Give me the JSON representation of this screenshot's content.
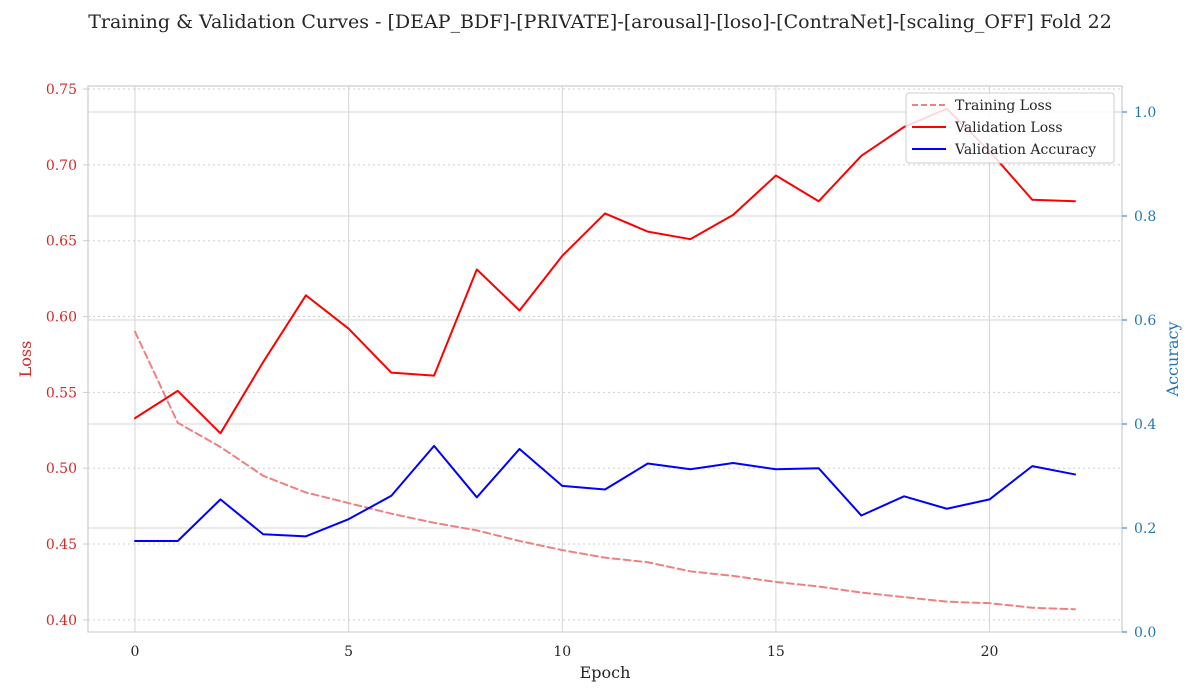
{
  "chart_data": {
    "type": "line",
    "title": "Training & Validation Curves - [DEAP_BDF]-[PRIVATE]-[arousal]-[loso]-[ContraNet]-[scaling_OFF] Fold 22",
    "xlabel": "Epoch",
    "ylabel_left": "Loss",
    "ylabel_right": "Accuracy",
    "xlim": [
      -1.1,
      23.1
    ],
    "ylim_left": [
      0.392,
      0.752
    ],
    "ylim_right": [
      0.0,
      1.05
    ],
    "xticks": [
      0,
      5,
      10,
      15,
      20
    ],
    "yticks_left": [
      0.4,
      0.45,
      0.5,
      0.55,
      0.6,
      0.65,
      0.7,
      0.75
    ],
    "yticks_right": [
      0.0,
      0.2,
      0.4,
      0.6,
      0.8,
      1.0
    ],
    "grid": true,
    "legend_position": "top-right",
    "x": [
      0,
      1,
      2,
      3,
      4,
      5,
      6,
      7,
      8,
      9,
      10,
      11,
      12,
      13,
      14,
      15,
      16,
      17,
      18,
      19,
      20,
      21,
      22
    ],
    "series": [
      {
        "name": "Training Loss",
        "axis": "left",
        "color": "#f08080",
        "style": "dashed",
        "values": [
          0.59,
          0.53,
          0.514,
          0.495,
          0.484,
          0.477,
          0.47,
          0.464,
          0.459,
          0.452,
          0.446,
          0.441,
          0.438,
          0.432,
          0.429,
          0.425,
          0.422,
          0.418,
          0.415,
          0.412,
          0.411,
          0.408,
          0.407
        ]
      },
      {
        "name": "Validation Loss",
        "axis": "left",
        "color": "#ff0000",
        "style": "solid",
        "values": [
          0.533,
          0.551,
          0.523,
          0.57,
          0.614,
          0.592,
          0.563,
          0.561,
          0.631,
          0.604,
          0.64,
          0.668,
          0.656,
          0.651,
          0.667,
          0.693,
          0.676,
          0.706,
          0.725,
          0.737,
          0.709,
          0.677,
          0.676
        ]
      },
      {
        "name": "Validation Accuracy",
        "axis": "right",
        "color": "#0000ff",
        "style": "solid",
        "values": [
          0.175,
          0.175,
          0.255,
          0.188,
          0.184,
          0.217,
          0.262,
          0.358,
          0.259,
          0.352,
          0.281,
          0.274,
          0.324,
          0.313,
          0.325,
          0.313,
          0.315,
          0.224,
          0.261,
          0.237,
          0.255,
          0.319,
          0.303
        ]
      }
    ]
  }
}
